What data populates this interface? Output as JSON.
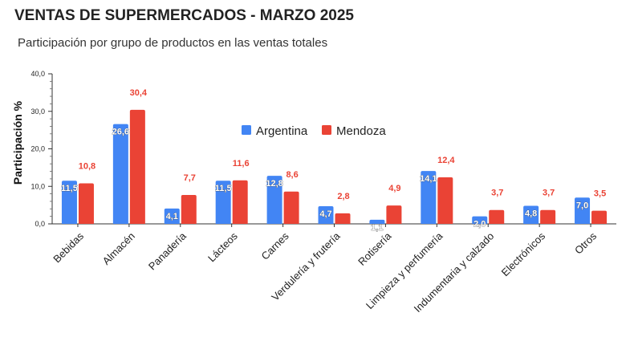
{
  "chart_data": {
    "type": "bar",
    "title": "VENTAS DE SUPERMERCADOS - MARZO 2025",
    "subtitle": "Participación por grupo de productos en las ventas totales",
    "ylabel": "Participación %",
    "xlabel": "",
    "ylim": [
      0,
      40
    ],
    "yticks": [
      "0,0",
      "10,0",
      "20,0",
      "30,0",
      "40,0"
    ],
    "grid": false,
    "legend_position": "top-right",
    "categories": [
      "Bebidas",
      "Almacén",
      "Panadería",
      "Lácteos",
      "Carnes",
      "Verdulería y frutería",
      "Rotisería",
      "Limpieza y perfumería",
      "Indumentaria y calzado",
      "Electrónicos",
      "Otros"
    ],
    "series": [
      {
        "name": "Argentina",
        "color": "#4285f4",
        "values": [
          11.5,
          26.6,
          4.1,
          11.5,
          12.8,
          4.7,
          1.1,
          14.1,
          2.0,
          4.8,
          7.0
        ],
        "labels": [
          "11,5",
          "26,6",
          "4,1",
          "11,5",
          "12,8",
          "4,7",
          "1,1",
          "14,1",
          "2,0",
          "4,8",
          "7,0"
        ]
      },
      {
        "name": "Mendoza",
        "color": "#ea4335",
        "values": [
          10.8,
          30.4,
          7.7,
          11.6,
          8.6,
          2.8,
          4.9,
          12.4,
          3.7,
          3.7,
          3.5
        ],
        "labels": [
          "10,8",
          "30,4",
          "7,7",
          "11,6",
          "8,6",
          "2,8",
          "4,9",
          "12,4",
          "3,7",
          "3,7",
          "3,5"
        ]
      }
    ]
  }
}
